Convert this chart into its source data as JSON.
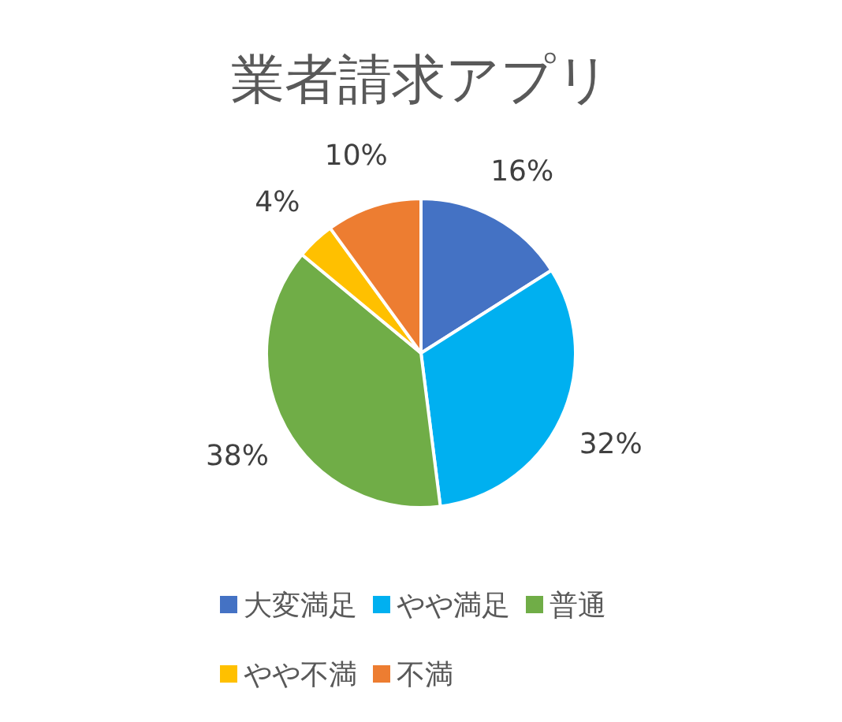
{
  "chart_data": {
    "type": "pie",
    "title": "業者請求アプリ",
    "categories": [
      "大変満足",
      "やや満足",
      "普通",
      "やや不満",
      "不満"
    ],
    "values": [
      16,
      32,
      38,
      4,
      10
    ],
    "colors": [
      "#4472c4",
      "#00b0f0",
      "#70ad47",
      "#ffc000",
      "#ed7d31"
    ],
    "value_labels": [
      "16%",
      "32%",
      "38%",
      "4%",
      "10%"
    ],
    "legend": "bottom"
  }
}
